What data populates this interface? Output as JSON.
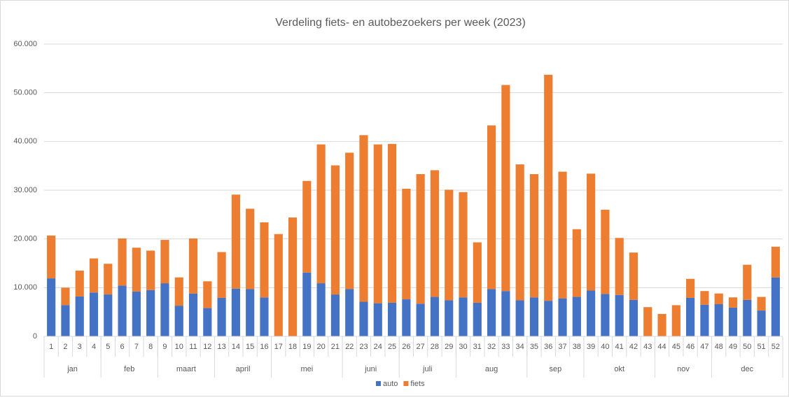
{
  "chart_data": {
    "type": "bar",
    "stacked": true,
    "title": "Verdeling fiets- en autobezoekers per week (2023)",
    "categories": [
      "1",
      "2",
      "3",
      "4",
      "5",
      "6",
      "7",
      "8",
      "9",
      "10",
      "11",
      "12",
      "13",
      "14",
      "15",
      "16",
      "17",
      "18",
      "19",
      "20",
      "21",
      "22",
      "23",
      "24",
      "25",
      "26",
      "27",
      "28",
      "29",
      "30",
      "31",
      "32",
      "33",
      "34",
      "35",
      "36",
      "37",
      "38",
      "39",
      "40",
      "41",
      "42",
      "43",
      "44",
      "45",
      "46",
      "47",
      "48",
      "49",
      "50",
      "51",
      "52"
    ],
    "x_groups": [
      {
        "label": "jan",
        "span": 4
      },
      {
        "label": "feb",
        "span": 4
      },
      {
        "label": "maart",
        "span": 4
      },
      {
        "label": "april",
        "span": 4
      },
      {
        "label": "mei",
        "span": 5
      },
      {
        "label": "juni",
        "span": 4
      },
      {
        "label": "juli",
        "span": 4
      },
      {
        "label": "aug",
        "span": 5
      },
      {
        "label": "sep",
        "span": 4
      },
      {
        "label": "okt",
        "span": 5
      },
      {
        "label": "nov",
        "span": 4
      },
      {
        "label": "dec",
        "span": 5
      }
    ],
    "series": [
      {
        "name": "auto",
        "color": "#4472c4",
        "values": [
          11900,
          6400,
          8200,
          9000,
          8600,
          10400,
          9200,
          9500,
          10900,
          6300,
          8800,
          5800,
          7900,
          9800,
          9700,
          8000,
          0,
          0,
          13100,
          10900,
          8600,
          9700,
          7100,
          6800,
          6900,
          7600,
          6700,
          8100,
          7400,
          8000,
          6900,
          9700,
          9300,
          7400,
          8000,
          7300,
          7800,
          8100,
          9400,
          8700,
          8500,
          7500,
          0,
          0,
          0,
          7900,
          6500,
          6600,
          5900,
          7500,
          5300,
          12100
        ]
      },
      {
        "name": "fiets",
        "color": "#ed7d31",
        "values": [
          8800,
          3600,
          5300,
          7000,
          6300,
          9700,
          9000,
          8100,
          8900,
          5800,
          11300,
          5500,
          9400,
          19300,
          16500,
          15400,
          21000,
          24400,
          18800,
          28500,
          26500,
          28000,
          34200,
          32600,
          32600,
          22700,
          26600,
          26000,
          22700,
          21600,
          12400,
          33600,
          42300,
          27900,
          25300,
          46400,
          26000,
          13900,
          24000,
          17300,
          11700,
          9700,
          6000,
          4600,
          6400,
          3900,
          2800,
          2200,
          2100,
          7200,
          2800,
          6300
        ]
      }
    ],
    "ylim": [
      0,
      60000
    ],
    "yticks": [
      0,
      {
        "value": 10000,
        "label": "10.000"
      },
      {
        "value": 20000,
        "label": "20.000"
      },
      {
        "value": 30000,
        "label": "30.000"
      },
      {
        "value": 40000,
        "label": "40.000"
      },
      {
        "value": 50000,
        "label": "50.000"
      },
      {
        "value": 60000,
        "label": "60.000"
      }
    ],
    "grid": true,
    "legend": "bottom"
  }
}
